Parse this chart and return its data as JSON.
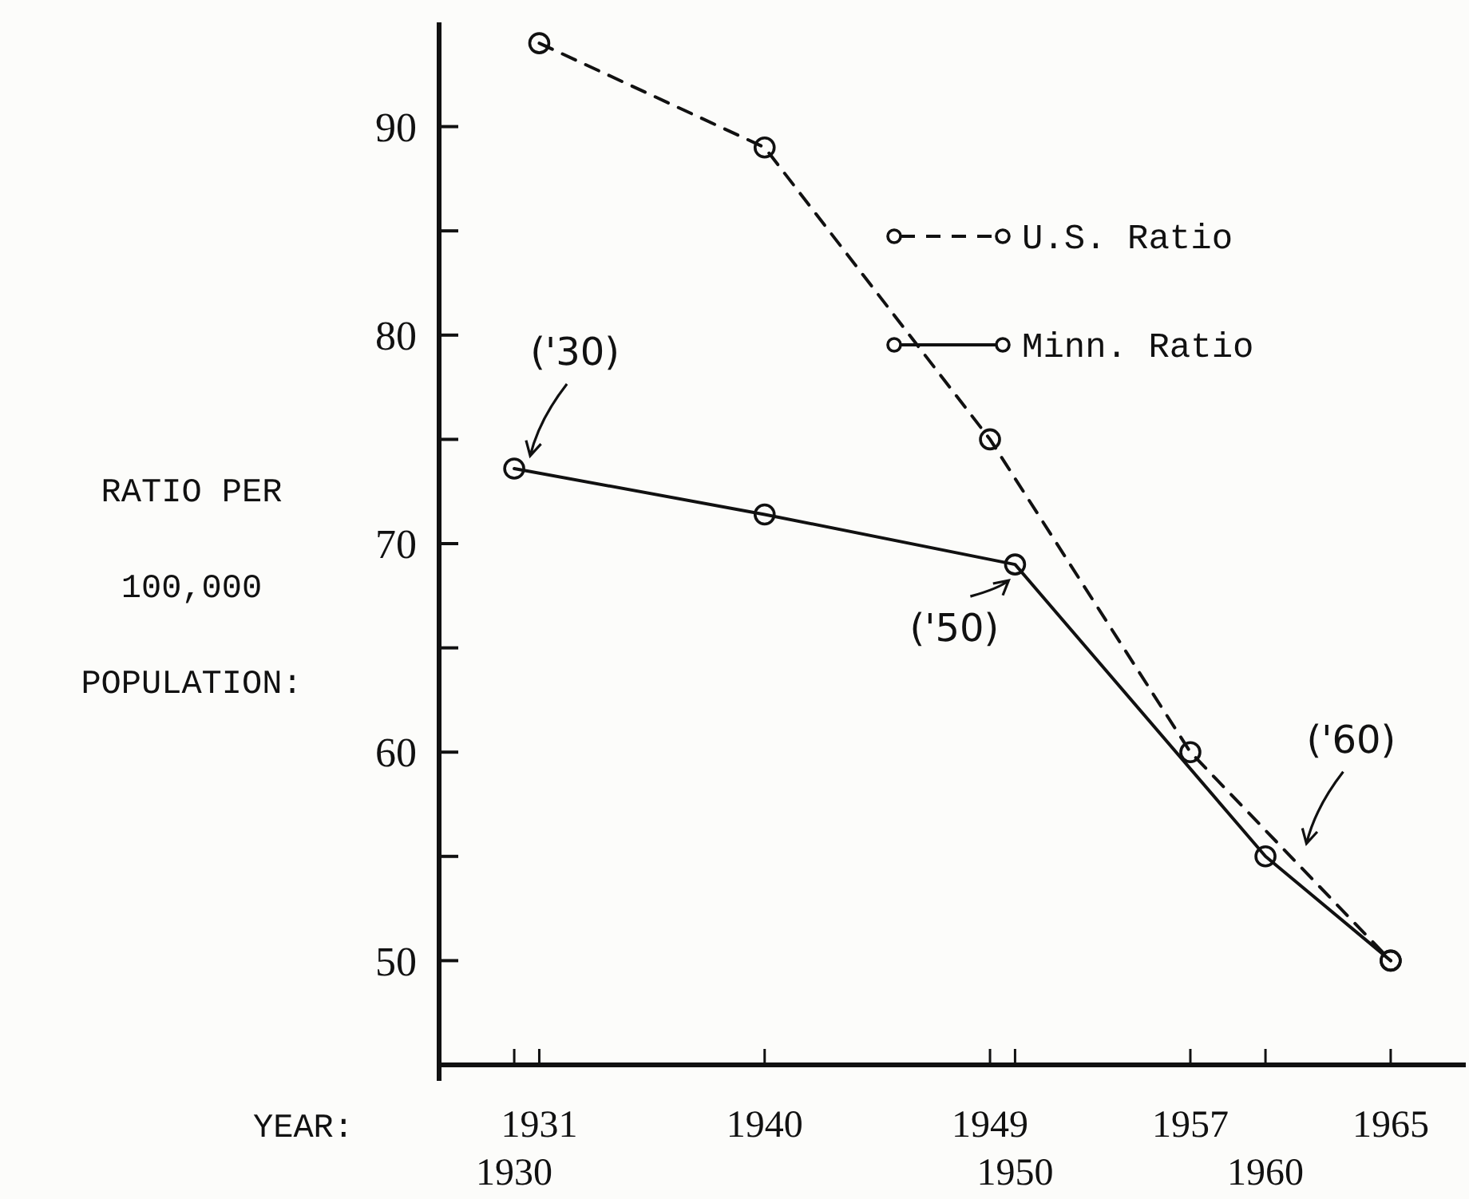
{
  "chart_data": {
    "type": "line",
    "xlabel": "YEAR:",
    "ylabel": "RATIO PER\n100,000\nPOPULATION:",
    "xlim": [
      1927,
      1968
    ],
    "xticks": [
      1931,
      1940,
      1949,
      1957,
      1965
    ],
    "x2lim": [
      1927,
      1968
    ],
    "x2ticks": [
      1930,
      1950,
      1960
    ],
    "ylim": [
      45,
      95
    ],
    "yticks": [
      50,
      {
        "value": 55,
        "label": null
      },
      60,
      {
        "value": 65,
        "label": null
      },
      70,
      {
        "value": 75,
        "label": null
      },
      80,
      {
        "value": 85,
        "label": null
      },
      90
    ],
    "marker": "circle",
    "legend": "top right",
    "grid": false,
    "series": [
      {
        "name": "U.S. Ratio",
        "color": "#111111",
        "line_style": "dashed",
        "x": [
          1931,
          1940,
          1949,
          1957,
          1965
        ],
        "values": [
          94,
          89,
          75,
          60,
          50
        ]
      },
      {
        "name": "Minn. Ratio",
        "color": "#111111",
        "line_style": "solid",
        "x": [
          1930,
          1940,
          1950,
          1960,
          1965
        ],
        "values": [
          73.6,
          71.4,
          69,
          55,
          50
        ]
      }
    ],
    "annotations": [
      {
        "text": "('30)",
        "x": 1930,
        "y": 73.6
      },
      {
        "text": "('50)",
        "x": 1950,
        "y": 69
      },
      {
        "text": "('60)",
        "x": 1961,
        "y": 55
      }
    ]
  }
}
